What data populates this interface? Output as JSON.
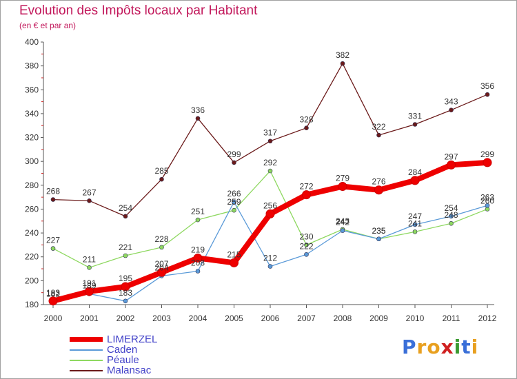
{
  "title": "Evolution des Impôts locaux par Habitant",
  "subtitle": "(en € et par an)",
  "brand": {
    "letters": [
      "P",
      "r",
      "o",
      "x",
      "i",
      "t",
      "i"
    ],
    "colors": [
      "#3a6fd8",
      "#e8a020",
      "#e8a020",
      "#d02020",
      "#3a9a30",
      "#3a6fd8",
      "#e8a020"
    ]
  },
  "chart_data": {
    "type": "line",
    "title": "Evolution des Impôts locaux par Habitant",
    "ylabel": "(en € et par an)",
    "xlabel": "",
    "ylim": [
      180,
      400
    ],
    "yticks": [
      180,
      200,
      220,
      240,
      260,
      280,
      300,
      320,
      340,
      360,
      380,
      400
    ],
    "categories": [
      "2000",
      "2001",
      "2002",
      "2003",
      "2004",
      "2005",
      "2006",
      "2007",
      "2008",
      "2009",
      "2010",
      "2011",
      "2012"
    ],
    "series": [
      {
        "name": "Malansac",
        "color": "#6b1a1a",
        "values": [
          268,
          267,
          254,
          285,
          336,
          299,
          317,
          328,
          382,
          322,
          331,
          343,
          356
        ]
      },
      {
        "name": "Péaule",
        "color": "#8ed860",
        "values": [
          227,
          211,
          221,
          228,
          251,
          259,
          292,
          230,
          243,
          235,
          241,
          248,
          260
        ]
      },
      {
        "name": "Caden",
        "color": "#5a9ad8",
        "values": [
          182,
          189,
          183,
          204,
          208,
          266,
          212,
          222,
          242,
          235,
          247,
          254,
          263
        ]
      },
      {
        "name": "LIMERZEL",
        "color": "#ee0000",
        "values": [
          183,
          191,
          195,
          207,
          219,
          215,
          256,
          272,
          279,
          276,
          284,
          297,
          299
        ]
      }
    ],
    "legend_order": [
      "LIMERZEL",
      "Caden",
      "Péaule",
      "Malansac"
    ],
    "legend_position": "bottom-left",
    "grid": false
  }
}
